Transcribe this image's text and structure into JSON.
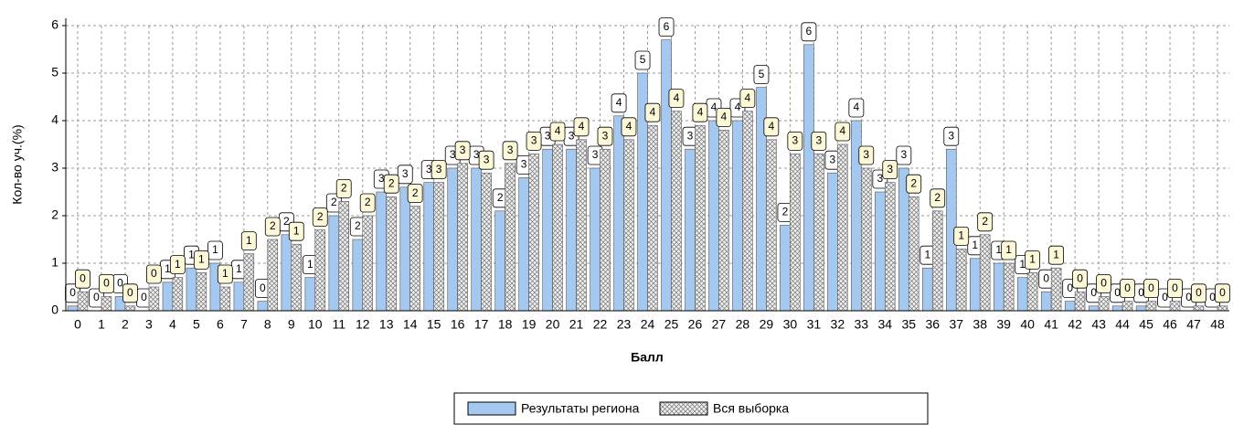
{
  "chart_data": {
    "type": "bar",
    "ylabel": "Кол-во уч.(%)",
    "xlabel": "Балл",
    "categories": [
      "0",
      "1",
      "2",
      "3",
      "4",
      "5",
      "6",
      "7",
      "8",
      "9",
      "10",
      "11",
      "12",
      "13",
      "14",
      "15",
      "16",
      "17",
      "18",
      "19",
      "20",
      "21",
      "22",
      "23",
      "24",
      "25",
      "26",
      "27",
      "28",
      "29",
      "30",
      "31",
      "32",
      "33",
      "34",
      "35",
      "36",
      "37",
      "38",
      "39",
      "40",
      "41",
      "42",
      "43",
      "44",
      "45",
      "46",
      "47",
      "48"
    ],
    "series": [
      {
        "name": "Результаты региона",
        "color": "#a4c8f0",
        "values": [
          0.1,
          0,
          0.3,
          0,
          0.6,
          0.9,
          1.0,
          0.6,
          0.2,
          1.6,
          0.7,
          2.0,
          1.5,
          2.5,
          2.6,
          2.7,
          3.0,
          3.0,
          2.1,
          2.8,
          3.4,
          3.4,
          3.0,
          4.1,
          5.0,
          5.7,
          3.4,
          4.0,
          4.0,
          4.7,
          1.8,
          5.6,
          2.9,
          4.0,
          2.5,
          3.0,
          0.9,
          3.4,
          1.1,
          1.0,
          0.7,
          0.4,
          0.2,
          0.1,
          0.1,
          0.1,
          0,
          0,
          0
        ],
        "value_labels": [
          "0",
          "0",
          "0",
          "0",
          "1",
          "1",
          "1",
          "1",
          "0",
          "2",
          "1",
          "2",
          "2",
          "3",
          "3",
          "3",
          "3",
          "3",
          "2",
          "3",
          "3",
          "3",
          "3",
          "4",
          "5",
          "6",
          "3",
          "4",
          "4",
          "5",
          "2",
          "6",
          "3",
          "4",
          "3",
          "3",
          "1",
          "3",
          "1",
          "1",
          "1",
          "0",
          "0",
          "0",
          "0",
          "0",
          "0",
          "0",
          "0"
        ]
      },
      {
        "name": "Вся выборка",
        "color": "#e0e0e0",
        "values": [
          0.4,
          0.3,
          0.1,
          0.5,
          0.7,
          0.8,
          0.5,
          1.2,
          1.5,
          1.4,
          1.7,
          2.3,
          2.0,
          2.4,
          2.2,
          2.7,
          3.1,
          2.9,
          3.1,
          3.3,
          3.5,
          3.6,
          3.4,
          3.6,
          3.9,
          4.2,
          3.9,
          3.8,
          4.2,
          3.6,
          3.3,
          3.3,
          3.5,
          3.0,
          2.7,
          2.4,
          2.1,
          1.3,
          1.6,
          1.0,
          0.8,
          0.9,
          0.4,
          0.3,
          0.2,
          0.2,
          0.2,
          0.1,
          0.1
        ],
        "value_labels": [
          "0",
          "0",
          "0",
          "0",
          "1",
          "1",
          "1",
          "1",
          "2",
          "1",
          "2",
          "2",
          "2",
          "2",
          "2",
          "3",
          "3",
          "3",
          "3",
          "3",
          "4",
          "4",
          "3",
          "4",
          "4",
          "4",
          "4",
          "4",
          "4",
          "4",
          "3",
          "3",
          "4",
          "3",
          "3",
          "2",
          "2",
          "1",
          "2",
          "1",
          "1",
          "1",
          "0",
          "0",
          "0",
          "0",
          "0",
          "0",
          "0"
        ]
      }
    ],
    "ylim": [
      0,
      6
    ],
    "yticks": [
      0,
      1,
      2,
      3,
      4,
      5,
      6
    ],
    "grid": true
  }
}
